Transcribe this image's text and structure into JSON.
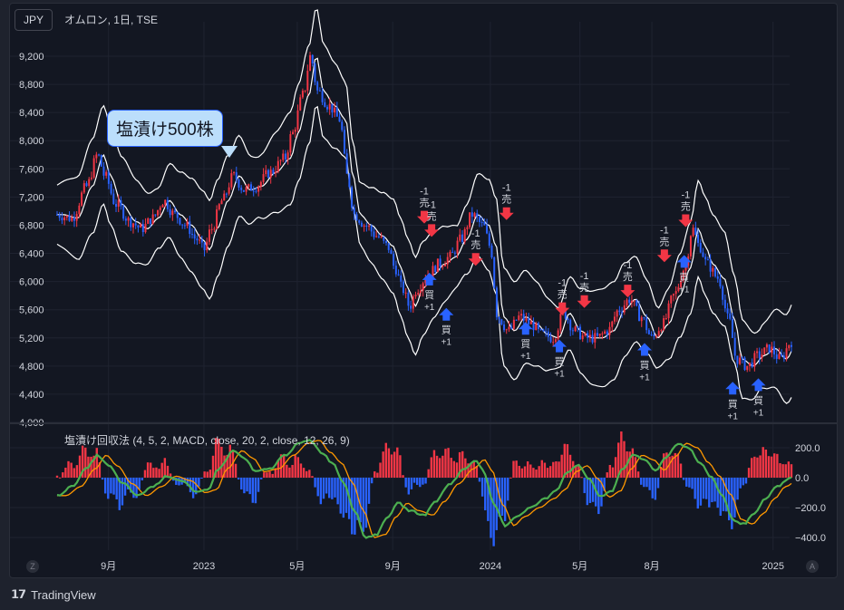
{
  "header": {
    "currency": "JPY",
    "symbol_title": "オムロン, 1日, TSE"
  },
  "annotation_text": "塩漬け500株",
  "indicator_title": "塩漬け回収法 (4, 5, 2, MACD, close, 20, 2, close, 12, 26, 9)",
  "brand": {
    "icon": "𝟭𝟳",
    "name": "TradingView"
  },
  "corner_left": "Z",
  "corner_right": "A",
  "colors": {
    "up": "#f23645",
    "down": "#2962ff",
    "band": "#ffffff",
    "macd": "#4caf50",
    "signal": "#ff9800",
    "sell": "#f23645",
    "buy": "#2962ff",
    "hist_pos": "#f23645",
    "hist_neg": "#2962ff"
  },
  "chart_data": [
    {
      "type": "candlestick",
      "title": "オムロン, 1日, TSE",
      "currency": "JPY",
      "yticks": [
        "9,200",
        "8,800",
        "8,400",
        "8,000",
        "7,600",
        "7,200",
        "6,800",
        "6,400",
        "6,000",
        "5,600",
        "5,200",
        "4,800",
        "4,400",
        "4,000"
      ],
      "ytick_values": [
        9200,
        8800,
        8400,
        8000,
        7600,
        7200,
        6800,
        6400,
        6000,
        5600,
        5200,
        4800,
        4400,
        4000
      ],
      "xticks": [
        {
          "label": "9月",
          "t": 0.07
        },
        {
          "label": "2023",
          "t": 0.2
        },
        {
          "label": "5月",
          "t": 0.327
        },
        {
          "label": "9月",
          "t": 0.457
        },
        {
          "label": "2024",
          "t": 0.59
        },
        {
          "label": "5月",
          "t": 0.712
        },
        {
          "label": "8月",
          "t": 0.81
        },
        {
          "label": "2025",
          "t": 0.975
        }
      ],
      "ylim": [
        4000,
        9500
      ],
      "price_path": [
        [
          0,
          6950
        ],
        [
          0.02,
          6900
        ],
        [
          0.04,
          7350
        ],
        [
          0.055,
          7800
        ],
        [
          0.065,
          7500
        ],
        [
          0.08,
          7100
        ],
        [
          0.1,
          6850
        ],
        [
          0.115,
          6750
        ],
        [
          0.13,
          6900
        ],
        [
          0.145,
          7150
        ],
        [
          0.16,
          6950
        ],
        [
          0.175,
          6800
        ],
        [
          0.19,
          6600
        ],
        [
          0.2,
          6450
        ],
        [
          0.21,
          6750
        ],
        [
          0.225,
          7150
        ],
        [
          0.24,
          7500
        ],
        [
          0.255,
          7300
        ],
        [
          0.27,
          7350
        ],
        [
          0.29,
          7550
        ],
        [
          0.31,
          7750
        ],
        [
          0.32,
          8100
        ],
        [
          0.335,
          8650
        ],
        [
          0.345,
          9200
        ],
        [
          0.355,
          8700
        ],
        [
          0.37,
          8500
        ],
        [
          0.385,
          8300
        ],
        [
          0.395,
          7500
        ],
        [
          0.405,
          6950
        ],
        [
          0.42,
          6800
        ],
        [
          0.435,
          6650
        ],
        [
          0.45,
          6500
        ],
        [
          0.46,
          6200
        ],
        [
          0.47,
          5900
        ],
        [
          0.48,
          5650
        ],
        [
          0.49,
          5900
        ],
        [
          0.505,
          6100
        ],
        [
          0.52,
          6250
        ],
        [
          0.535,
          6350
        ],
        [
          0.55,
          6600
        ],
        [
          0.565,
          6950
        ],
        [
          0.58,
          6800
        ],
        [
          0.59,
          6500
        ],
        [
          0.6,
          5500
        ],
        [
          0.615,
          5300
        ],
        [
          0.63,
          5500
        ],
        [
          0.645,
          5400
        ],
        [
          0.66,
          5250
        ],
        [
          0.675,
          5200
        ],
        [
          0.69,
          5550
        ],
        [
          0.705,
          5300
        ],
        [
          0.72,
          5200
        ],
        [
          0.735,
          5200
        ],
        [
          0.75,
          5300
        ],
        [
          0.765,
          5600
        ],
        [
          0.78,
          5750
        ],
        [
          0.795,
          5500
        ],
        [
          0.81,
          5200
        ],
        [
          0.825,
          5400
        ],
        [
          0.84,
          5800
        ],
        [
          0.855,
          6200
        ],
        [
          0.865,
          6750
        ],
        [
          0.875,
          6500
        ],
        [
          0.885,
          6250
        ],
        [
          0.9,
          6050
        ],
        [
          0.915,
          5450
        ],
        [
          0.925,
          4900
        ],
        [
          0.94,
          4800
        ],
        [
          0.955,
          4950
        ],
        [
          0.97,
          5050
        ],
        [
          0.985,
          4900
        ],
        [
          1,
          5150
        ]
      ],
      "band_width": 560,
      "signals": [
        {
          "kind": "sell",
          "label_top": "-1",
          "label_bottom": "売",
          "t": 0.5,
          "price": 6850
        },
        {
          "kind": "sell",
          "label_top": "-1",
          "label_bottom": "売",
          "t": 0.51,
          "price": 6660
        },
        {
          "kind": "buy",
          "label_top": "買",
          "label_bottom": "+1",
          "t": 0.507,
          "price": 6100
        },
        {
          "kind": "buy",
          "label_top": "買",
          "label_bottom": "+1",
          "t": 0.53,
          "price": 5600
        },
        {
          "kind": "sell",
          "label_top": "-1",
          "label_bottom": "売",
          "t": 0.57,
          "price": 6250
        },
        {
          "kind": "sell",
          "label_top": "-1",
          "label_bottom": "売",
          "t": 0.612,
          "price": 6900
        },
        {
          "kind": "buy",
          "label_top": "買",
          "label_bottom": "+1",
          "t": 0.638,
          "price": 5400
        },
        {
          "kind": "sell",
          "label_top": "-1",
          "label_bottom": "売",
          "t": 0.688,
          "price": 5550
        },
        {
          "kind": "buy",
          "label_top": "買",
          "label_bottom": "+1",
          "t": 0.684,
          "price": 5150
        },
        {
          "kind": "sell",
          "label_top": "-1",
          "label_bottom": "売",
          "t": 0.718,
          "price": 5650
        },
        {
          "kind": "sell",
          "label_top": "-1",
          "label_bottom": "売",
          "t": 0.777,
          "price": 5800
        },
        {
          "kind": "buy",
          "label_top": "買",
          "label_bottom": "+1",
          "t": 0.8,
          "price": 5100
        },
        {
          "kind": "sell",
          "label_top": "-1",
          "label_bottom": "売",
          "t": 0.827,
          "price": 6300
        },
        {
          "kind": "sell",
          "label_top": "-1",
          "label_bottom": "売",
          "t": 0.856,
          "price": 6800
        },
        {
          "kind": "buy",
          "label_top": "買",
          "label_bottom": "+1",
          "t": 0.854,
          "price": 6350
        },
        {
          "kind": "buy",
          "label_top": "買",
          "label_bottom": "+1",
          "t": 0.92,
          "price": 4550
        },
        {
          "kind": "buy",
          "label_top": "買",
          "label_bottom": "+1",
          "t": 0.955,
          "price": 4600
        }
      ]
    },
    {
      "type": "line",
      "title": "塩漬け回収法 (4, 5, 2, MACD, close, 20, 2, close, 12, 26, 9)",
      "yticks": [
        "200.0",
        "0.0",
        "−200.0",
        "−400.0"
      ],
      "ytick_values": [
        200,
        0,
        -200,
        -400
      ],
      "ylim": [
        -450,
        260
      ],
      "macd_path": [
        [
          0,
          -120
        ],
        [
          0.02,
          -60
        ],
        [
          0.04,
          60
        ],
        [
          0.055,
          150
        ],
        [
          0.07,
          80
        ],
        [
          0.09,
          -40
        ],
        [
          0.11,
          -120
        ],
        [
          0.13,
          -60
        ],
        [
          0.15,
          10
        ],
        [
          0.17,
          -20
        ],
        [
          0.19,
          -100
        ],
        [
          0.205,
          -80
        ],
        [
          0.22,
          60
        ],
        [
          0.24,
          180
        ],
        [
          0.255,
          130
        ],
        [
          0.27,
          40
        ],
        [
          0.29,
          60
        ],
        [
          0.31,
          150
        ],
        [
          0.33,
          230
        ],
        [
          0.345,
          250
        ],
        [
          0.36,
          170
        ],
        [
          0.375,
          100
        ],
        [
          0.39,
          -30
        ],
        [
          0.405,
          -220
        ],
        [
          0.42,
          -400
        ],
        [
          0.435,
          -380
        ],
        [
          0.45,
          -260
        ],
        [
          0.465,
          -170
        ],
        [
          0.48,
          -220
        ],
        [
          0.5,
          -250
        ],
        [
          0.515,
          -160
        ],
        [
          0.535,
          -40
        ],
        [
          0.555,
          60
        ],
        [
          0.57,
          120
        ],
        [
          0.58,
          50
        ],
        [
          0.595,
          -180
        ],
        [
          0.61,
          -320
        ],
        [
          0.625,
          -260
        ],
        [
          0.645,
          -200
        ],
        [
          0.665,
          -140
        ],
        [
          0.68,
          -80
        ],
        [
          0.695,
          40
        ],
        [
          0.71,
          80
        ],
        [
          0.725,
          -10
        ],
        [
          0.74,
          -130
        ],
        [
          0.755,
          -90
        ],
        [
          0.77,
          60
        ],
        [
          0.785,
          150
        ],
        [
          0.8,
          120
        ],
        [
          0.815,
          50
        ],
        [
          0.83,
          140
        ],
        [
          0.845,
          230
        ],
        [
          0.86,
          200
        ],
        [
          0.875,
          100
        ],
        [
          0.89,
          10
        ],
        [
          0.905,
          -110
        ],
        [
          0.92,
          -280
        ],
        [
          0.935,
          -310
        ],
        [
          0.95,
          -240
        ],
        [
          0.965,
          -140
        ],
        [
          0.98,
          -60
        ],
        [
          1,
          0
        ]
      ],
      "signal_lag": 0.012
    }
  ]
}
